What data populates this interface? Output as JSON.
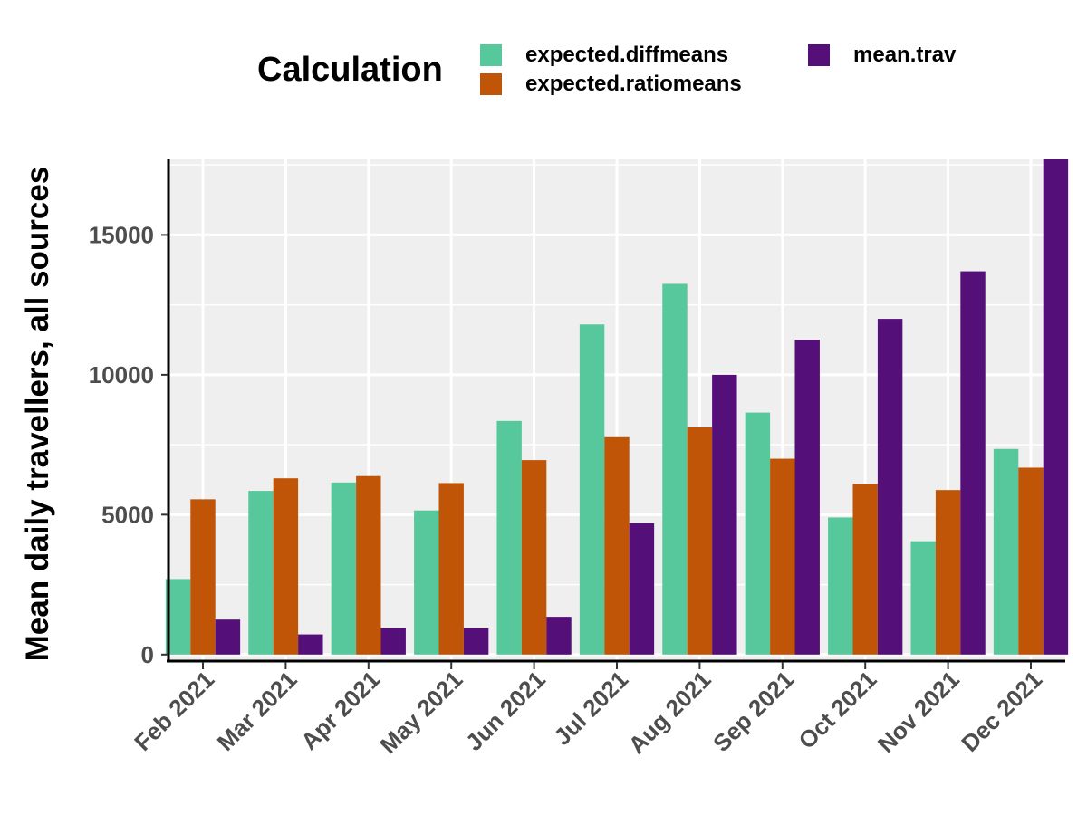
{
  "chart_data": {
    "type": "bar",
    "categories": [
      "Feb 2021",
      "Mar 2021",
      "Apr 2021",
      "May 2021",
      "Jun 2021",
      "Jul 2021",
      "Aug 2021",
      "Sep 2021",
      "Oct 2021",
      "Nov 2021",
      "Dec 2021"
    ],
    "series": [
      {
        "name": "expected.diffmeans",
        "color": "#57c89b",
        "values": [
          2700,
          5850,
          6150,
          5150,
          8350,
          11800,
          13250,
          8650,
          4900,
          4050,
          7350
        ]
      },
      {
        "name": "expected.ratiomeans",
        "color": "#c05508",
        "values": [
          5550,
          6300,
          6380,
          6130,
          6950,
          7770,
          8120,
          7000,
          6100,
          5880,
          6680
        ]
      },
      {
        "name": "mean.trav",
        "color": "#550f78",
        "values": [
          1250,
          720,
          940,
          940,
          1350,
          4700,
          10000,
          11250,
          12000,
          13700,
          17700
        ]
      }
    ],
    "xlabel": "",
    "ylabel": "Mean daily travellers, all sources",
    "yticks": [
      0,
      5000,
      10000,
      15000
    ],
    "ylim": [
      -200,
      17700
    ],
    "grid": true,
    "legend": {
      "title": "Calculation",
      "placement": "top"
    }
  }
}
